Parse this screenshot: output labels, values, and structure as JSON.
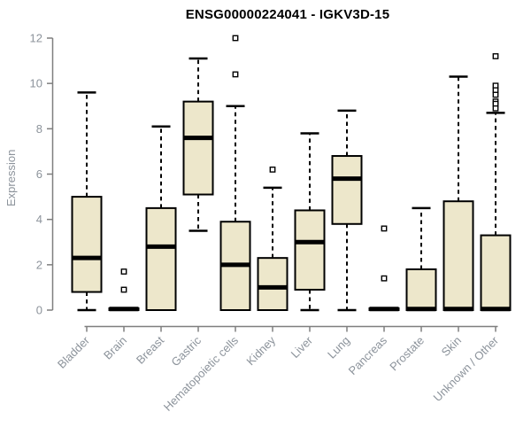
{
  "title": "ENSG00000224041 - IGKV3D-15",
  "colors": {
    "box_fill": "#EDE7CB",
    "box_stroke": "#000000",
    "axis": "#7F7F7F",
    "tick_text": "#8C939B",
    "title_text": "#000000",
    "background": "#FFFFFF",
    "outlier_fill": "#FFFFFF"
  },
  "chart_data": {
    "type": "boxplot",
    "title": "ENSG00000224041 - IGKV3D-15",
    "xlabel": "",
    "ylabel": "Expression",
    "ylim": [
      0,
      12
    ],
    "yticks": [
      0,
      2,
      4,
      6,
      8,
      10,
      12
    ],
    "grid": false,
    "legend": "none",
    "categories": [
      "Bladder",
      "Brain",
      "Breast",
      "Gastric",
      "Hematopoietic cells",
      "Kidney",
      "Liver",
      "Lung",
      "Pancreas",
      "Prostate",
      "Skin",
      "Unknown / Other"
    ],
    "boxes": [
      {
        "category": "Bladder",
        "min": 0,
        "q1": 0.8,
        "median": 2.3,
        "q3": 5.0,
        "max": 9.6,
        "outliers": []
      },
      {
        "category": "Brain",
        "min": 0,
        "q1": 0,
        "median": 0.05,
        "q3": 0.08,
        "max": 0.1,
        "outliers": [
          1.7,
          0.9
        ]
      },
      {
        "category": "Breast",
        "min": 0,
        "q1": 0,
        "median": 2.8,
        "q3": 4.5,
        "max": 8.1,
        "outliers": []
      },
      {
        "category": "Gastric",
        "min": 3.5,
        "q1": 5.1,
        "median": 7.6,
        "q3": 9.2,
        "max": 11.1,
        "outliers": []
      },
      {
        "category": "Hematopoietic cells",
        "min": 0,
        "q1": 0,
        "median": 2.0,
        "q3": 3.9,
        "max": 9.0,
        "outliers": [
          12.0,
          10.4
        ]
      },
      {
        "category": "Kidney",
        "min": 0,
        "q1": 0,
        "median": 1.0,
        "q3": 2.3,
        "max": 5.4,
        "outliers": [
          6.2
        ]
      },
      {
        "category": "Liver",
        "min": 0,
        "q1": 0.9,
        "median": 3.0,
        "q3": 4.4,
        "max": 7.8,
        "outliers": []
      },
      {
        "category": "Lung",
        "min": 0,
        "q1": 3.8,
        "median": 5.8,
        "q3": 6.8,
        "max": 8.8,
        "outliers": []
      },
      {
        "category": "Pancreas",
        "min": 0,
        "q1": 0,
        "median": 0.05,
        "q3": 0.08,
        "max": 0.1,
        "outliers": [
          3.6,
          1.4
        ]
      },
      {
        "category": "Prostate",
        "min": 0,
        "q1": 0,
        "median": 0.05,
        "q3": 1.8,
        "max": 4.5,
        "outliers": []
      },
      {
        "category": "Skin",
        "min": 0,
        "q1": 0,
        "median": 0.05,
        "q3": 4.8,
        "max": 10.3,
        "outliers": []
      },
      {
        "category": "Unknown / Other",
        "min": 0,
        "q1": 0,
        "median": 0.05,
        "q3": 3.3,
        "max": 8.7,
        "outliers": [
          11.2,
          9.9,
          9.7,
          9.5,
          9.2,
          9.1,
          8.9
        ]
      }
    ]
  }
}
